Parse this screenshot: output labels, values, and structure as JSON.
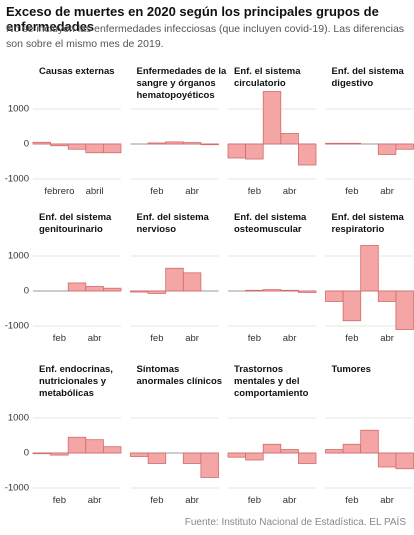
{
  "title": "Exceso de muertes en 2020 según los principales grupos de enfermedades",
  "subtitle": "No se incluyen las enfermedades infecciosas (que incluyen covid-19). Las diferencias son sobre el mismo mes de 2019.",
  "source": "Fuente: Instituto Nacional de Estadística. EL PAÍS",
  "chart_data": [
    {
      "type": "bar",
      "title": "Causas externas",
      "categories": [
        null,
        "febrero",
        null,
        "abril",
        null
      ],
      "values": [
        50,
        -50,
        -150,
        -250,
        -250
      ],
      "color": "#f4a5a5",
      "ylim": [
        -1300,
        1600
      ],
      "yticks": [
        -1000,
        0,
        1000
      ],
      "grid": true
    },
    {
      "type": "bar",
      "title": "Enfermedades de la sangre y órganos hematopoyéticos",
      "categories": [
        null,
        "feb",
        null,
        "abr",
        null
      ],
      "values": [
        0,
        30,
        60,
        40,
        -20
      ],
      "color": "#f4a5a5",
      "ylim": [
        -1300,
        1600
      ],
      "yticks": [
        -1000,
        0,
        1000
      ],
      "grid": true
    },
    {
      "type": "bar",
      "title": "Enf. el sistema circulatorio",
      "categories": [
        null,
        "feb",
        null,
        "abr",
        null
      ],
      "values": [
        -400,
        -430,
        1500,
        300,
        -600
      ],
      "color": "#f4a5a5",
      "ylim": [
        -1300,
        1600
      ],
      "yticks": [
        -1000,
        0,
        1000
      ],
      "grid": true
    },
    {
      "type": "bar",
      "title": "Enf. del sistema digestivo",
      "categories": [
        null,
        "feb",
        null,
        "abr",
        null
      ],
      "values": [
        20,
        20,
        0,
        -300,
        -150
      ],
      "color": "#f4a5a5",
      "ylim": [
        -1300,
        1600
      ],
      "yticks": [
        -1000,
        0,
        1000
      ],
      "grid": true
    },
    {
      "type": "bar",
      "title": "Enf. del sistema genitourinario",
      "categories": [
        null,
        "feb",
        null,
        "abr",
        null
      ],
      "values": [
        0,
        0,
        230,
        130,
        80
      ],
      "color": "#f4a5a5",
      "ylim": [
        -1300,
        1600
      ],
      "yticks": [
        -1000,
        0,
        1000
      ],
      "grid": true
    },
    {
      "type": "bar",
      "title": "Enf. del sistema nervioso",
      "categories": [
        null,
        "feb",
        null,
        "abr",
        null
      ],
      "values": [
        -30,
        -70,
        650,
        520,
        0
      ],
      "color": "#f4a5a5",
      "ylim": [
        -1300,
        1600
      ],
      "yticks": [
        -1000,
        0,
        1000
      ],
      "grid": true
    },
    {
      "type": "bar",
      "title": "Enf. del sistema osteomuscular",
      "categories": [
        null,
        "feb",
        null,
        "abr",
        null
      ],
      "values": [
        0,
        20,
        40,
        20,
        -40
      ],
      "color": "#f4a5a5",
      "ylim": [
        -1300,
        1600
      ],
      "yticks": [
        -1000,
        0,
        1000
      ],
      "grid": true
    },
    {
      "type": "bar",
      "title": "Enf. del sistema respiratorio",
      "categories": [
        null,
        "feb",
        null,
        "abr",
        null
      ],
      "values": [
        -300,
        -850,
        1300,
        -300,
        -1100
      ],
      "color": "#f4a5a5",
      "ylim": [
        -1300,
        1600
      ],
      "yticks": [
        -1000,
        0,
        1000
      ],
      "grid": true
    },
    {
      "type": "bar",
      "title": "Enf. endocrinas, nutricionales y metabólicas",
      "categories": [
        null,
        "feb",
        null,
        "abr",
        null
      ],
      "values": [
        -20,
        -60,
        450,
        380,
        180
      ],
      "color": "#f4a5a5",
      "ylim": [
        -1300,
        1600
      ],
      "yticks": [
        -1000,
        0,
        1000
      ],
      "grid": true
    },
    {
      "type": "bar",
      "title": "Síntomas anormales clínicos",
      "categories": [
        null,
        "feb",
        null,
        "abr",
        null
      ],
      "values": [
        -100,
        -300,
        0,
        -300,
        -700
      ],
      "color": "#f4a5a5",
      "ylim": [
        -1300,
        1600
      ],
      "yticks": [
        -1000,
        0,
        1000
      ],
      "grid": true
    },
    {
      "type": "bar",
      "title": "Trastornos mentales y del comportamiento",
      "categories": [
        null,
        "feb",
        null,
        "abr",
        null
      ],
      "values": [
        -120,
        -200,
        250,
        100,
        -300
      ],
      "color": "#f4a5a5",
      "ylim": [
        -1300,
        1600
      ],
      "yticks": [
        -1000,
        0,
        1000
      ],
      "grid": true
    },
    {
      "type": "bar",
      "title": "Tumores",
      "categories": [
        null,
        "feb",
        null,
        "abr",
        null
      ],
      "values": [
        100,
        250,
        650,
        -400,
        -450
      ],
      "color": "#f4a5a5",
      "ylim": [
        -1300,
        1600
      ],
      "yticks": [
        -1000,
        0,
        1000
      ],
      "grid": true
    }
  ]
}
